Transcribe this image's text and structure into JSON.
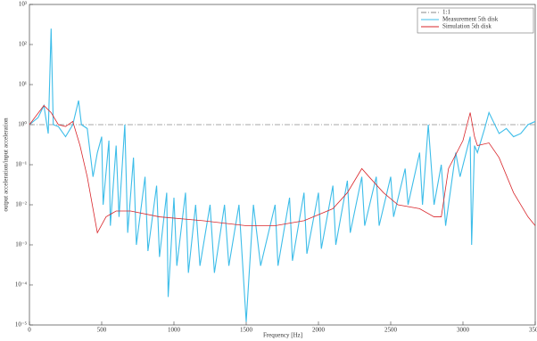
{
  "chart_data": {
    "type": "line",
    "xlabel": "Frequency [Hz]",
    "ylabel": "output acceleration/input acceleration",
    "xlim": [
      0,
      3500
    ],
    "xticks": [
      0,
      500,
      1000,
      1500,
      2000,
      2500,
      3000,
      3500
    ],
    "ylim": [
      1e-05,
      1000
    ],
    "ylog": true,
    "yticks": [
      {
        "value": 1e-05,
        "label": "10⁻⁵"
      },
      {
        "value": 0.0001,
        "label": "10⁻⁴"
      },
      {
        "value": 0.001,
        "label": "10⁻³"
      },
      {
        "value": 0.01,
        "label": "10⁻²"
      },
      {
        "value": 0.1,
        "label": "10⁻¹"
      },
      {
        "value": 1,
        "label": "10⁰"
      },
      {
        "value": 10,
        "label": "10¹"
      },
      {
        "value": 100,
        "label": "10²"
      },
      {
        "value": 1000,
        "label": "10³"
      }
    ],
    "legend": "top-right",
    "series": [
      {
        "name": "1:1",
        "color": "#8a8a8a",
        "dash": "dashdot",
        "x": [
          0,
          3500
        ],
        "values": [
          1,
          1
        ]
      },
      {
        "name": "Measurement 5th disk",
        "color": "#3dbde9",
        "dash": "solid",
        "x": [
          0,
          60,
          100,
          130,
          150,
          165,
          200,
          250,
          300,
          340,
          360,
          400,
          440,
          470,
          500,
          510,
          550,
          560,
          600,
          620,
          660,
          680,
          720,
          740,
          800,
          820,
          880,
          900,
          950,
          960,
          1000,
          1020,
          1080,
          1100,
          1150,
          1180,
          1250,
          1280,
          1350,
          1380,
          1450,
          1500,
          1550,
          1600,
          1700,
          1720,
          1800,
          1820,
          1900,
          1920,
          2000,
          2020,
          2100,
          2120,
          2200,
          2220,
          2300,
          2320,
          2400,
          2420,
          2500,
          2520,
          2600,
          2620,
          2700,
          2720,
          2760,
          2800,
          2850,
          2880,
          2950,
          2980,
          3050,
          3060,
          3080,
          3100,
          3150,
          3180,
          3250,
          3300,
          3350,
          3400,
          3450,
          3500
        ],
        "values": [
          1,
          1.5,
          3,
          0.6,
          250,
          1,
          0.9,
          0.5,
          1,
          4,
          1,
          0.8,
          0.05,
          0.2,
          0.5,
          0.01,
          0.4,
          0.003,
          0.3,
          0.005,
          1,
          0.002,
          0.15,
          0.001,
          0.05,
          0.0007,
          0.03,
          0.0005,
          0.02,
          5e-05,
          0.015,
          0.0003,
          0.02,
          0.0002,
          0.01,
          0.0003,
          0.01,
          0.0002,
          0.01,
          0.0003,
          0.01,
          1.2e-05,
          0.01,
          0.0003,
          0.01,
          0.0003,
          0.015,
          0.0004,
          0.02,
          0.0006,
          0.02,
          0.0008,
          0.03,
          0.001,
          0.04,
          0.002,
          0.05,
          0.003,
          0.05,
          0.003,
          0.05,
          0.005,
          0.08,
          0.01,
          0.2,
          0.01,
          1,
          0.01,
          0.1,
          0.003,
          0.2,
          0.05,
          0.5,
          0.001,
          0.3,
          0.2,
          0.8,
          2,
          0.6,
          0.8,
          0.5,
          0.6,
          1,
          1.2
        ]
      },
      {
        "name": "Simulation 5th disk",
        "color": "#d9262b",
        "dash": "solid",
        "x": [
          0,
          100,
          150,
          200,
          250,
          300,
          350,
          400,
          450,
          470,
          530,
          600,
          700,
          900,
          1200,
          1500,
          1700,
          1900,
          2100,
          2200,
          2300,
          2350,
          2450,
          2550,
          2700,
          2800,
          2850,
          2900,
          3000,
          3050,
          3080,
          3100,
          3180,
          3250,
          3350,
          3450,
          3500
        ],
        "values": [
          1,
          3,
          2,
          1,
          0.9,
          1.2,
          0.3,
          0.05,
          0.005,
          0.002,
          0.005,
          0.007,
          0.007,
          0.005,
          0.004,
          0.003,
          0.003,
          0.004,
          0.008,
          0.02,
          0.08,
          0.05,
          0.02,
          0.01,
          0.008,
          0.005,
          0.005,
          0.08,
          0.4,
          2,
          0.5,
          0.3,
          0.35,
          0.15,
          0.02,
          0.005,
          0.003
        ]
      }
    ]
  }
}
